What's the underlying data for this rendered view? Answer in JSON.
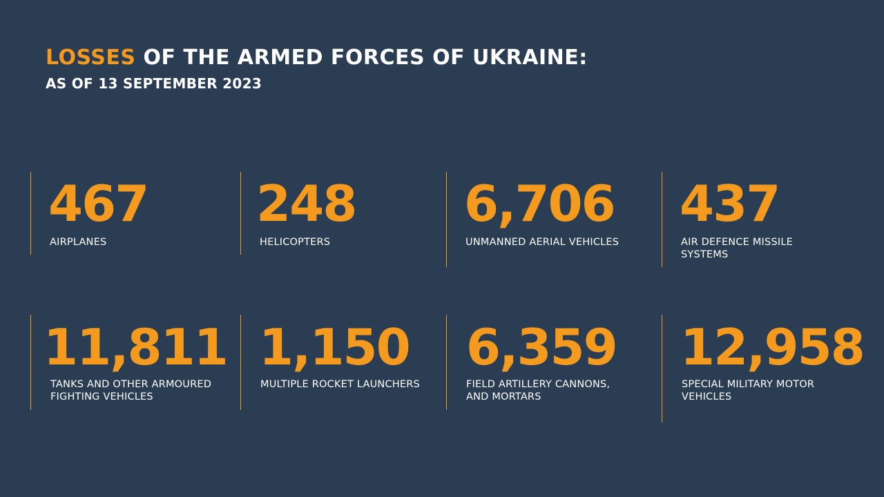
{
  "header": {
    "title_accent": "LOSSES",
    "title_rest": " OF THE ARMED FORCES OF UKRAINE:",
    "subtitle": "AS OF 13 SEPTEMBER 2023"
  },
  "stats": [
    {
      "value": "467",
      "label": "AIRPLANES"
    },
    {
      "value": "248",
      "label": "HELICOPTERS"
    },
    {
      "value": "6,706",
      "label": "UNMANNED AERIAL VEHICLES"
    },
    {
      "value": "437",
      "label": "AIR DEFENCE MISSILE\nSYSTEMS"
    },
    {
      "value": "11,811",
      "label": "TANKS AND OTHER ARMOURED\nFIGHTING VEHICLES"
    },
    {
      "value": "1,150",
      "label": "MULTIPLE ROCKET LAUNCHERS"
    },
    {
      "value": "6,359",
      "label": "FIELD ARTILLERY CANNONS,\nAND MORTARS"
    },
    {
      "value": "12,958",
      "label": "SPECIAL MILITARY MOTOR\nVEHICLES"
    }
  ],
  "colors": {
    "background": "#2a3d53",
    "accent": "#f39a1f",
    "text": "#ffffff"
  }
}
